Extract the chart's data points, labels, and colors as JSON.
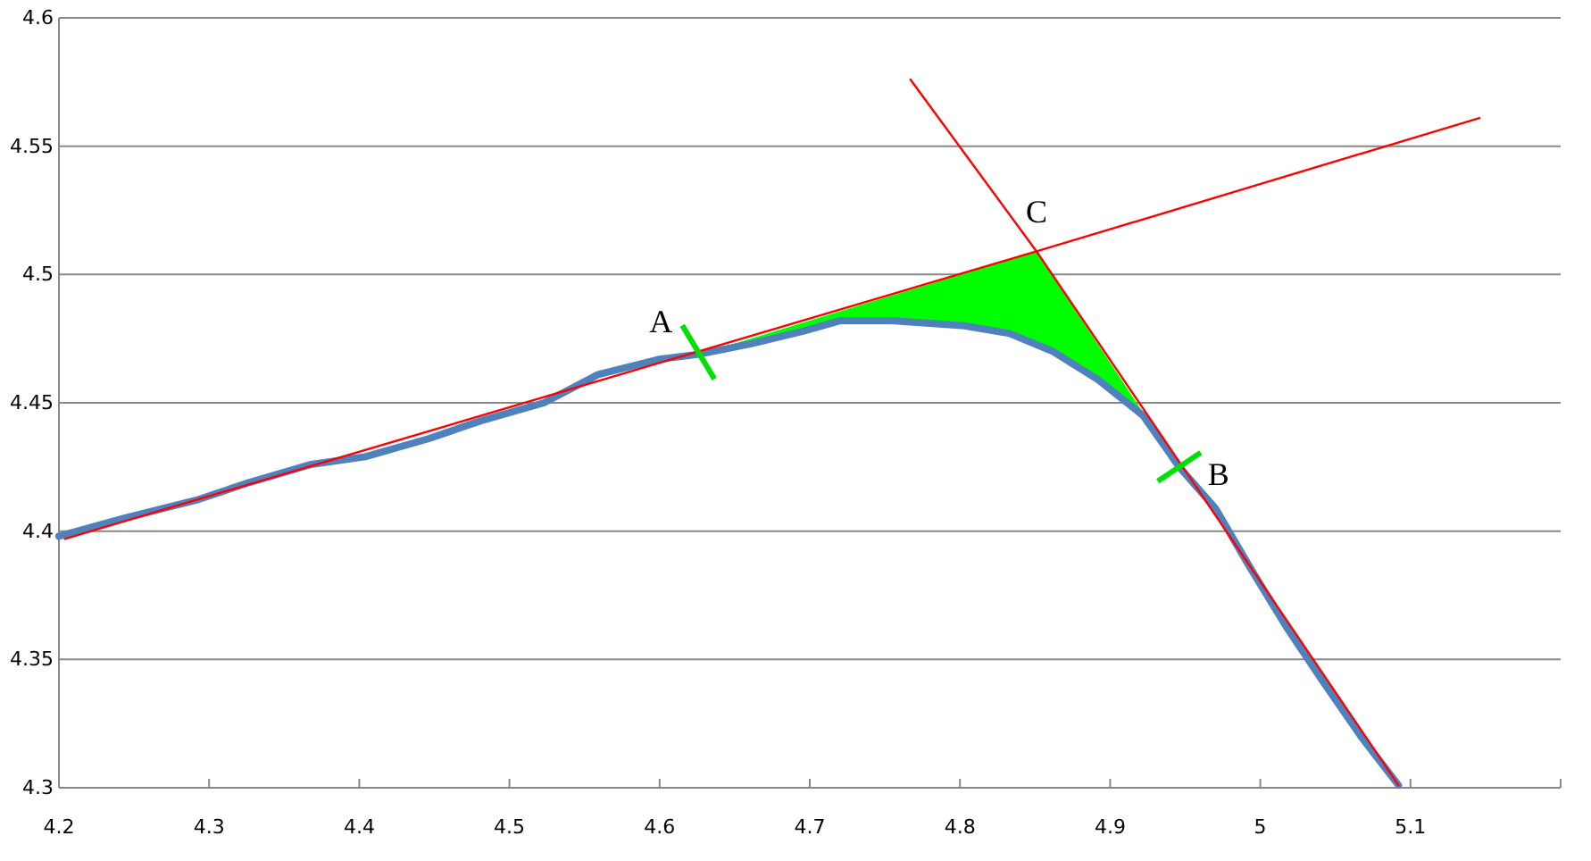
{
  "chart_data": {
    "type": "line",
    "xlim": [
      4.2,
      5.2
    ],
    "ylim": [
      4.3,
      4.6
    ],
    "xticks": [
      4.2,
      4.3,
      4.4,
      4.5,
      4.6,
      4.7,
      4.8,
      4.9,
      5,
      5.1,
      {
        "value": 5.2,
        "label": null
      }
    ],
    "yticks": [
      4.3,
      4.35,
      4.4,
      4.45,
      4.5,
      4.55,
      4.6
    ],
    "grid": "y",
    "marker": "none",
    "line_style": "solid",
    "series": [
      {
        "color": "#4f81bd",
        "x": [
          4.2,
          4.243,
          4.291,
          4.327,
          4.368,
          4.404,
          4.446,
          4.481,
          4.523,
          4.559,
          4.6,
          4.627,
          4.661,
          4.696,
          4.72,
          4.755,
          4.803,
          4.833,
          4.862,
          4.892,
          4.922,
          4.946,
          4.97,
          4.993,
          5.017,
          5.041,
          5.067,
          5.092
        ],
        "values": [
          4.398,
          4.405,
          4.412,
          4.419,
          4.426,
          4.429,
          4.436,
          4.443,
          4.45,
          4.461,
          4.467,
          4.469,
          4.473,
          4.478,
          4.482,
          4.482,
          4.48,
          4.477,
          4.47,
          4.459,
          4.445,
          4.425,
          4.409,
          4.386,
          4.363,
          4.342,
          4.32,
          4.301
        ]
      },
      {
        "color": "#ff0000",
        "x": [
          4.204,
          4.851,
          5.146
        ],
        "values": [
          4.397,
          4.509,
          4.561
        ]
      },
      {
        "color": "#ff0000",
        "x": [
          4.767,
          4.851,
          5.092
        ],
        "values": [
          4.576,
          4.509,
          4.301
        ]
      }
    ],
    "annotations": [
      {
        "text": "A",
        "x": 4.627,
        "y": 4.469
      },
      {
        "text": "B",
        "x": 4.946,
        "y": 4.425
      },
      {
        "text": "C",
        "x": 4.851,
        "y": 4.509
      }
    ]
  }
}
